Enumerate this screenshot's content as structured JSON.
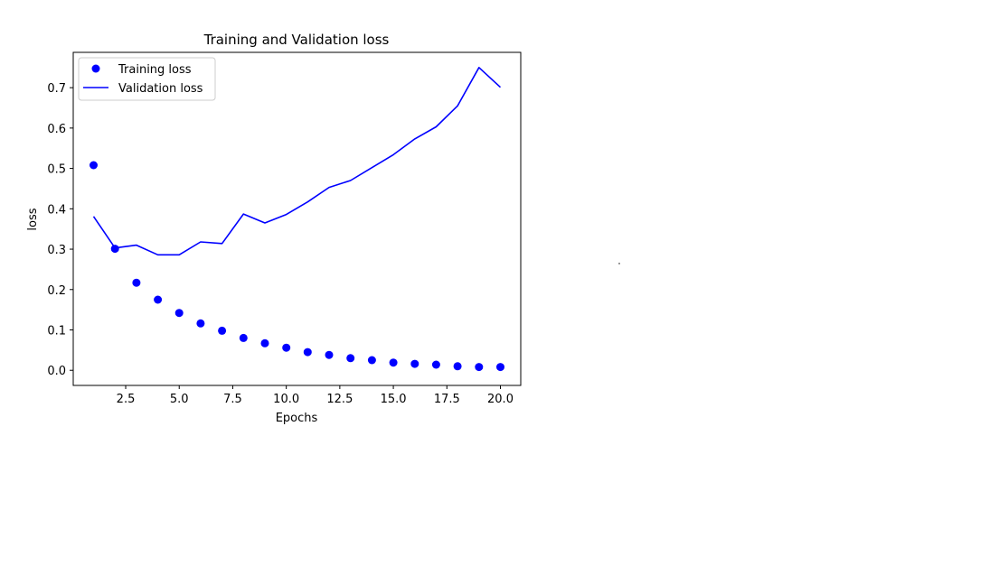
{
  "chart_data": {
    "type": "line",
    "title": "Training and Validation loss",
    "xlabel": "Epochs",
    "ylabel": "loss",
    "xlim": [
      0.05,
      20.95
    ],
    "ylim": [
      -0.0375,
      0.7875
    ],
    "xticks": [
      2.5,
      5.0,
      7.5,
      10.0,
      12.5,
      15.0,
      17.5,
      20.0
    ],
    "xtick_labels": [
      "2.5",
      "5.0",
      "7.5",
      "10.0",
      "12.5",
      "15.0",
      "17.5",
      "20.0"
    ],
    "yticks": [
      0.0,
      0.1,
      0.2,
      0.3,
      0.4,
      0.5,
      0.6,
      0.7
    ],
    "ytick_labels": [
      "0.0",
      "0.1",
      "0.2",
      "0.3",
      "0.4",
      "0.5",
      "0.6",
      "0.7"
    ],
    "grid": false,
    "legend_position": "top-left",
    "color": "#0000ff",
    "x": [
      1,
      2,
      3,
      4,
      5,
      6,
      7,
      8,
      9,
      10,
      11,
      12,
      13,
      14,
      15,
      16,
      17,
      18,
      19,
      20
    ],
    "series": [
      {
        "name": "Training loss",
        "style": "markers",
        "values": [
          0.508,
          0.301,
          0.217,
          0.175,
          0.142,
          0.116,
          0.098,
          0.08,
          0.067,
          0.056,
          0.045,
          0.038,
          0.03,
          0.025,
          0.019,
          0.016,
          0.014,
          0.01,
          0.008,
          0.008
        ]
      },
      {
        "name": "Validation loss",
        "style": "line",
        "values": [
          0.381,
          0.303,
          0.31,
          0.286,
          0.286,
          0.318,
          0.314,
          0.387,
          0.365,
          0.386,
          0.417,
          0.453,
          0.47,
          0.502,
          0.534,
          0.573,
          0.603,
          0.655,
          0.75,
          0.701
        ]
      }
    ]
  }
}
